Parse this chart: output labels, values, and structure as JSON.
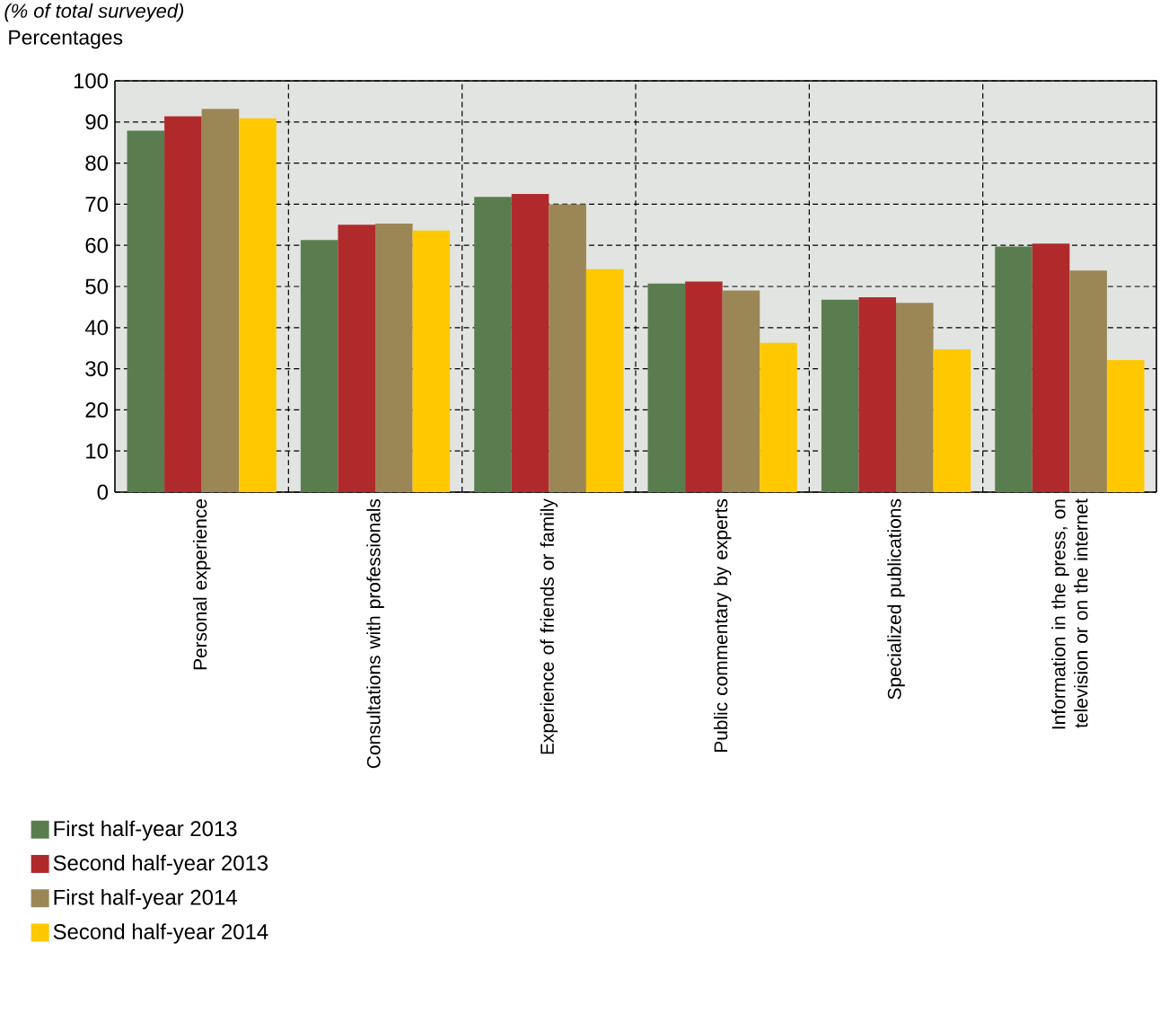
{
  "chart_data": {
    "type": "bar",
    "subtitle": "(% of total surveyed)",
    "ylabel": "Percentages",
    "categories": [
      "Personal experience",
      "Consultations with professionals",
      "Experience of friends or family",
      "Public commentary by experts",
      "Specialized publications",
      "Information in the press, on television or on the internet"
    ],
    "series": [
      {
        "name": "First half-year 2013",
        "color": "#5a7d50",
        "values": [
          87.9,
          61.3,
          71.8,
          50.7,
          46.8,
          59.7
        ]
      },
      {
        "name": "Second half-year 2013",
        "color": "#b02a2c",
        "values": [
          91.4,
          65.0,
          72.5,
          51.2,
          47.4,
          60.4
        ]
      },
      {
        "name": "First half-year 2014",
        "color": "#9b8756",
        "values": [
          93.2,
          65.3,
          70.0,
          49.0,
          46.0,
          53.9
        ]
      },
      {
        "name": "Second half-year 2014",
        "color": "#ffc800",
        "values": [
          90.9,
          63.6,
          54.2,
          36.3,
          34.7,
          32.1
        ]
      }
    ],
    "ylim": [
      0,
      100
    ],
    "yticks": [
      0,
      10,
      20,
      30,
      40,
      50,
      60,
      70,
      80,
      90,
      100
    ],
    "grid": true,
    "legend": "bottom left"
  }
}
